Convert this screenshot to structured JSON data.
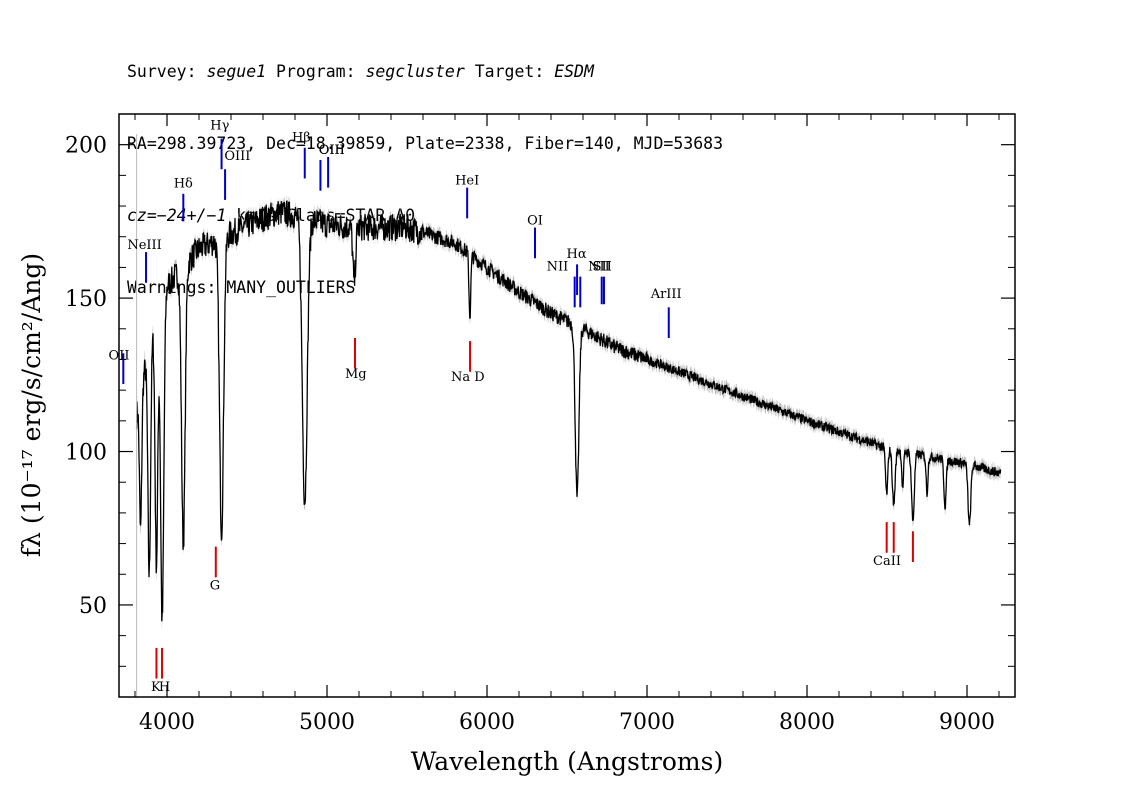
{
  "header": {
    "line1": {
      "survey_label": "Survey: ",
      "survey": "segue1",
      "program_label": " Program: ",
      "program": "segcluster",
      "target_label": " Target: ",
      "target": "ESDM"
    },
    "line2": "RA=298.39723, Dec=18.39859, Plate=2338, Fiber=140, MJD=53683",
    "line3": {
      "cz": "cz=−24+/−1",
      "rest": " km/s Class=STAR A0"
    },
    "line4": "Warnings: MANY_OUTLIERS"
  },
  "chart_data": {
    "type": "line",
    "xlabel": "Wavelength (Angstroms)",
    "ylabel": "fλ (10⁻¹⁷ erg/s/cm²/Ang)",
    "xlim": [
      3700,
      9300
    ],
    "ylim": [
      20,
      210
    ],
    "xticks": [
      4000,
      5000,
      6000,
      7000,
      8000,
      9000
    ],
    "yticks": [
      50,
      100,
      150,
      200
    ],
    "colors": {
      "spectrum": "#000000",
      "error_band": "#bbbbbb",
      "emission": "#0000cc",
      "absorption": "#dd0000"
    },
    "continuum": [
      [
        3810,
        112
      ],
      [
        3900,
        138
      ],
      [
        4000,
        154
      ],
      [
        4100,
        160
      ],
      [
        4200,
        166
      ],
      [
        4400,
        171
      ],
      [
        4600,
        176
      ],
      [
        4700,
        178
      ],
      [
        4800,
        177
      ],
      [
        5000,
        174
      ],
      [
        5200,
        173
      ],
      [
        5500,
        173
      ],
      [
        5800,
        168
      ],
      [
        6000,
        160
      ],
      [
        6200,
        152
      ],
      [
        6400,
        145
      ],
      [
        6600,
        140
      ],
      [
        6800,
        134
      ],
      [
        7000,
        130
      ],
      [
        7500,
        120
      ],
      [
        8000,
        110
      ],
      [
        8500,
        101
      ],
      [
        9000,
        96
      ],
      [
        9200,
        93
      ]
    ],
    "absorption_features": [
      {
        "wave": 3835,
        "depth": 45,
        "width": 10
      },
      {
        "wave": 3889,
        "depth": 75,
        "width": 12
      },
      {
        "wave": 3934,
        "depth": 80,
        "width": 12
      },
      {
        "wave": 3970,
        "depth": 105,
        "width": 14
      },
      {
        "wave": 4102,
        "depth": 90,
        "width": 16
      },
      {
        "wave": 4341,
        "depth": 95,
        "width": 18
      },
      {
        "wave": 4861,
        "depth": 92,
        "width": 22
      },
      {
        "wave": 5170,
        "depth": 18,
        "width": 12
      },
      {
        "wave": 5893,
        "depth": 20,
        "width": 8
      },
      {
        "wave": 6563,
        "depth": 56,
        "width": 16
      },
      {
        "wave": 8498,
        "depth": 15,
        "width": 10
      },
      {
        "wave": 8542,
        "depth": 18,
        "width": 12
      },
      {
        "wave": 8598,
        "depth": 12,
        "width": 8
      },
      {
        "wave": 8662,
        "depth": 22,
        "width": 12
      },
      {
        "wave": 8750,
        "depth": 12,
        "width": 8
      },
      {
        "wave": 8863,
        "depth": 15,
        "width": 10
      },
      {
        "wave": 9015,
        "depth": 20,
        "width": 12
      }
    ],
    "emission_lines": [
      {
        "label": "OII",
        "wave": 3727,
        "y0": 122,
        "y1": 132,
        "lx": 3700,
        "ly": 130
      },
      {
        "label": "NeIII",
        "wave": 3869,
        "y0": 155,
        "y1": 165,
        "lx": 3860,
        "ly": 166
      },
      {
        "label": "Hδ",
        "wave": 4102,
        "y0": 175,
        "y1": 184,
        "lx": 4102,
        "ly": 186
      },
      {
        "label": "Hγ",
        "wave": 4341,
        "y0": 192,
        "y1": 202,
        "lx": 4330,
        "ly": 205
      },
      {
        "label": "OIII",
        "wave": 4363,
        "y0": 182,
        "y1": 192,
        "lx": 4440,
        "ly": 195
      },
      {
        "label": "Hβ",
        "wave": 4861,
        "y0": 189,
        "y1": 199,
        "lx": 4840,
        "ly": 201
      },
      {
        "label": "OIII",
        "wave": 4959,
        "y0": 185,
        "y1": 195,
        "lx": 5030,
        "ly": 197
      },
      {
        "label": "OIII",
        "wave": 5007,
        "y0": 186,
        "y1": 196,
        "lx": 5030,
        "ly": 197
      },
      {
        "label": "HeI",
        "wave": 5876,
        "y0": 176,
        "y1": 186,
        "lx": 5876,
        "ly": 187
      },
      {
        "label": "OI",
        "wave": 6300,
        "y0": 163,
        "y1": 173,
        "lx": 6300,
        "ly": 174
      },
      {
        "label": "NII",
        "wave": 6548,
        "y0": 147,
        "y1": 157,
        "lx": 6440,
        "ly": 159
      },
      {
        "label": "Hα",
        "wave": 6563,
        "y0": 151,
        "y1": 161,
        "lx": 6560,
        "ly": 163
      },
      {
        "label": "NII",
        "wave": 6583,
        "y0": 147,
        "y1": 157,
        "lx": 6700,
        "ly": 159
      },
      {
        "label": "SII",
        "wave": 6717,
        "y0": 148,
        "y1": 157,
        "lx": 6720,
        "ly": 159
      },
      {
        "label": "SII",
        "wave": 6731,
        "y0": 148,
        "y1": 157,
        "lx": 6720,
        "ly": 159
      },
      {
        "label": "ArIII",
        "wave": 7136,
        "y0": 137,
        "y1": 147,
        "lx": 7120,
        "ly": 150
      }
    ],
    "absorption_lines": [
      {
        "label": "K",
        "wave": 3934,
        "y0": 26,
        "y1": 36,
        "lx": 3930,
        "ly": 22
      },
      {
        "label": "H",
        "wave": 3969,
        "y0": 26,
        "y1": 36,
        "lx": 3985,
        "ly": 22
      },
      {
        "label": "G",
        "wave": 4305,
        "y0": 59,
        "y1": 69,
        "lx": 4300,
        "ly": 55
      },
      {
        "label": "Mg",
        "wave": 5175,
        "y0": 127,
        "y1": 137,
        "lx": 5180,
        "ly": 124
      },
      {
        "label": "Na D",
        "wave": 5894,
        "y0": 126,
        "y1": 136,
        "lx": 5880,
        "ly": 123
      },
      {
        "label": "CaII",
        "wave": 8498,
        "y0": 67,
        "y1": 77,
        "lx": 8500,
        "ly": 63
      },
      {
        "label": "",
        "wave": 8542,
        "y0": 67,
        "y1": 77,
        "lx": 0,
        "ly": 0
      },
      {
        "label": "",
        "wave": 8662,
        "y0": 64,
        "y1": 74,
        "lx": 0,
        "ly": 0
      }
    ]
  }
}
